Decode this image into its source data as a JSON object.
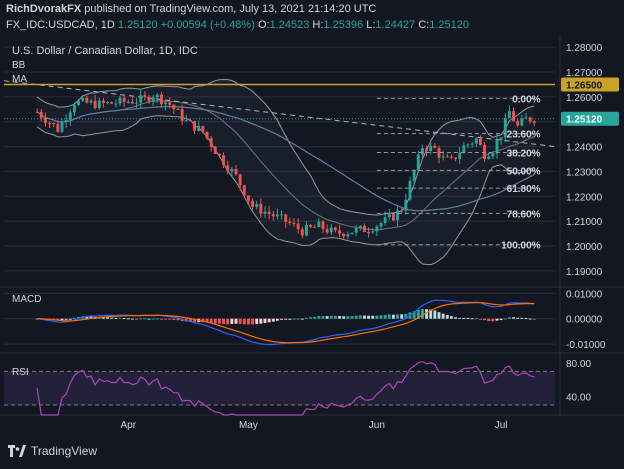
{
  "header": {
    "author": "RichDvorakFX",
    "published_on": "published on TradingView.com, July 13, 2021 21:14:20 UTC",
    "symbol": "FX_IDC:USDCAD, 1D",
    "last": "1.25120",
    "change": "+0.00594 (+0.48%)",
    "o_label": "O:",
    "o_value": "1.24523",
    "h_label": "H:",
    "h_value": "1.25396",
    "l_label": "L:",
    "l_value": "1.24427",
    "c_label": "C:",
    "c_value": "1.25120"
  },
  "footer": {
    "brand": "TradingView"
  },
  "colors": {
    "bg": "#131722",
    "up": "#26a69a",
    "down": "#ef5350",
    "grid": "#2a2e39",
    "fib": "#9598a1",
    "resistance": "#c9a227",
    "bb": "#9598a1",
    "ma": "#5d7fa3",
    "macd": "#2962ff",
    "signal": "#ff6d00",
    "rsi": "#ab47bc"
  },
  "chart_data": [
    {
      "type": "candlestick",
      "title": "U.S. Dollar / Canadian Dollar, 1D, IDC",
      "indicators": [
        "BB",
        "MA"
      ],
      "y_ticks": [
        "1.28000",
        "1.27000",
        "1.26000",
        "1.25000",
        "1.24000",
        "1.23000",
        "1.22000",
        "1.21000",
        "1.20000",
        "1.19000"
      ],
      "ylim": [
        1.1855,
        1.2845
      ],
      "x_ticks": [
        {
          "label": "Apr",
          "x": 22
        },
        {
          "label": "May",
          "x": 51
        },
        {
          "label": "Jun",
          "x": 82
        },
        {
          "label": "Jul",
          "x": 112
        }
      ],
      "xlim": [
        -8,
        125
      ],
      "last_price": "1.25120",
      "resistance": {
        "label": "1.26500",
        "value": 1.265
      },
      "fibonacci": [
        {
          "label": "0.00%",
          "value": 1.2594
        },
        {
          "label": "23.60%",
          "value": 1.2452
        },
        {
          "label": "38.20%",
          "value": 1.2376
        },
        {
          "label": "50.00%",
          "value": 1.2304
        },
        {
          "label": "61.80%",
          "value": 1.2233
        },
        {
          "label": "78.60%",
          "value": 1.2131
        },
        {
          "label": "100.00%",
          "value": 1.2005
        }
      ],
      "trendline": {
        "from": {
          "x": -8,
          "y": 1.2665
        },
        "to": {
          "x": 125,
          "y": 1.24
        }
      }
    },
    {
      "type": "macd",
      "name": "MACD",
      "y_ticks": [
        "0.01000",
        "0.00000",
        "-0.01000"
      ],
      "ylim": [
        -0.0135,
        0.0125
      ]
    },
    {
      "type": "line",
      "name": "RSI",
      "y_ticks": [
        "80.00",
        "40.00"
      ],
      "ylim": [
        18,
        92
      ],
      "bands": [
        70,
        30
      ]
    }
  ]
}
